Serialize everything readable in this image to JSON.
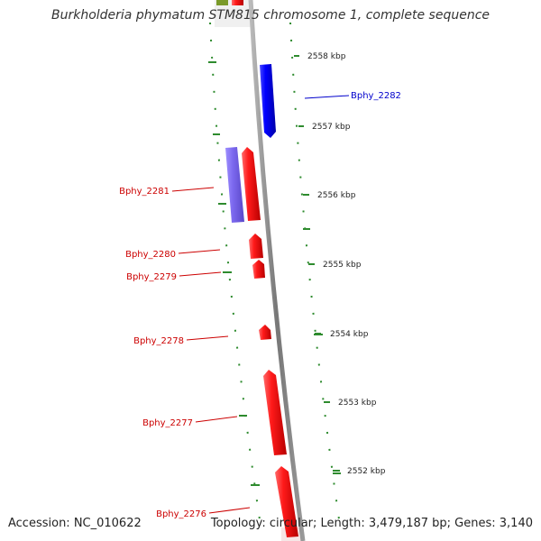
{
  "title": "Burkholderia phymatum STM815 chromosome 1, complete sequence",
  "accession_text": "Accession: NC_010622",
  "stats_text": "Topology: circular; Length: 3,479,187 bp; Genes: 3,140",
  "colors": {
    "reverse_gene": "#ff0000",
    "forward_gene": "#0000ff",
    "other_feature": "#7b68ee",
    "gc_plot": "#2e8b2e",
    "backbone": "#888888"
  },
  "ticks": [
    "2558 kbp",
    "2557 kbp",
    "2556 kbp",
    "2555 kbp",
    "2554 kbp",
    "2553 kbp",
    "2552 kbp"
  ],
  "gene_labels": [
    "Bphy_2282",
    "Bphy_2281",
    "Bphy_2280",
    "Bphy_2279",
    "Bphy_2278",
    "Bphy_2277",
    "Bphy_2276"
  ]
}
